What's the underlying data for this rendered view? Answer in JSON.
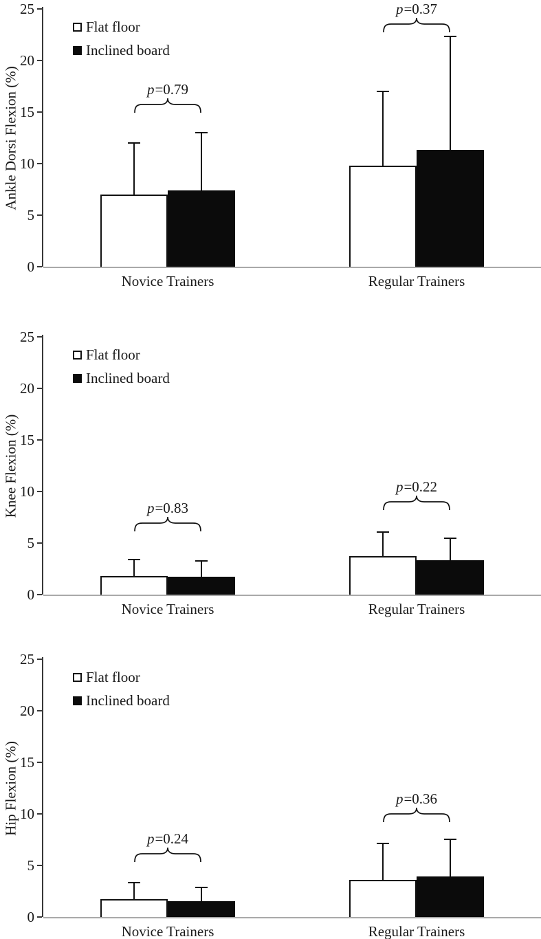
{
  "figure": {
    "background": "#ffffff",
    "legend": {
      "position": "top-left",
      "items": [
        {
          "label": "Flat floor",
          "swatch": "outline",
          "color": "#ffffff"
        },
        {
          "label": "Inclined board",
          "swatch": "filled",
          "color": "#0b0b0b"
        }
      ]
    },
    "colors": {
      "bar_border": "#111111",
      "flat_fill": "#ffffff",
      "inclined_fill": "#0b0b0b",
      "y_axis": "#383838",
      "x_axis": "#a9a9a9",
      "text": "#1a1a1a"
    }
  },
  "chart_data": [
    {
      "type": "bar",
      "title": "",
      "xlabel": "",
      "ylabel": "Ankle Dorsi Flexion (%)",
      "ylim": [
        0,
        25
      ],
      "yticks": [
        0,
        5,
        10,
        15,
        20,
        25
      ],
      "grid": false,
      "legend_position": "top-left",
      "categories": [
        "Novice Trainers",
        "Regular Trainers"
      ],
      "series": [
        {
          "name": "Flat floor",
          "values": [
            7.0,
            9.8
          ],
          "errors_up": [
            5.0,
            7.2
          ]
        },
        {
          "name": "Inclined board",
          "values": [
            7.4,
            11.3
          ],
          "errors_up": [
            5.6,
            11.0
          ]
        }
      ],
      "annotations": [
        {
          "group": "Novice Trainers",
          "italic": "p",
          "text": "=0.79",
          "y": 17.2
        },
        {
          "group": "Regular Trainers",
          "italic": "p",
          "text": "=0.37",
          "y": 25.0
        }
      ]
    },
    {
      "type": "bar",
      "title": "",
      "xlabel": "",
      "ylabel": "Knee Flexion (%)",
      "ylim": [
        0,
        25
      ],
      "yticks": [
        0,
        5,
        10,
        15,
        20,
        25
      ],
      "grid": false,
      "legend_position": "top-left",
      "categories": [
        "Novice Trainers",
        "Regular Trainers"
      ],
      "series": [
        {
          "name": "Flat floor",
          "values": [
            1.8,
            3.7
          ],
          "errors_up": [
            1.6,
            2.3
          ]
        },
        {
          "name": "Inclined board",
          "values": [
            1.7,
            3.3
          ],
          "errors_up": [
            1.5,
            2.1
          ]
        }
      ],
      "annotations": [
        {
          "group": "Novice Trainers",
          "italic": "p",
          "text": "=0.83",
          "y": 8.4
        },
        {
          "group": "Regular Trainers",
          "italic": "p",
          "text": "=0.22",
          "y": 10.5
        }
      ]
    },
    {
      "type": "bar",
      "title": "",
      "xlabel": "",
      "ylabel": "Hip Flexion (%)",
      "ylim": [
        0,
        25
      ],
      "yticks": [
        0,
        5,
        10,
        15,
        20,
        25
      ],
      "grid": false,
      "legend_position": "top-left",
      "categories": [
        "Novice Trainers",
        "Regular Trainers"
      ],
      "series": [
        {
          "name": "Flat floor",
          "values": [
            1.7,
            3.6
          ],
          "errors_up": [
            1.6,
            3.5
          ]
        },
        {
          "name": "Inclined board",
          "values": [
            1.5,
            3.9
          ],
          "errors_up": [
            1.3,
            3.6
          ]
        }
      ],
      "annotations": [
        {
          "group": "Novice Trainers",
          "italic": "p",
          "text": "=0.24",
          "y": 7.6
        },
        {
          "group": "Regular Trainers",
          "italic": "p",
          "text": "=0.36",
          "y": 11.5
        }
      ]
    }
  ]
}
